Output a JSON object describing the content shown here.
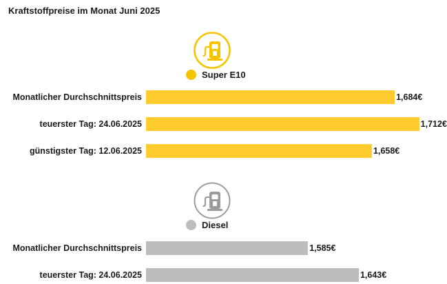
{
  "title": "Kraftstoffpreise im Monat Juni 2025",
  "colors": {
    "super_e10": "#FFCB2F",
    "super_e10_icon": "#F6C400",
    "diesel": "#BDBDBD",
    "diesel_icon": "#9B9B9B"
  },
  "icons": {
    "super_e10": "fuel-pump-icon",
    "diesel": "fuel-pump-icon"
  },
  "chart_data": {
    "type": "bar",
    "orientation": "horizontal",
    "xlim": [
      1.4,
      1.75
    ],
    "series": [
      {
        "name": "Super E10",
        "categories": [
          "Monatlicher Durchschnittspreis",
          "teuerster Tag: 24.06.2025",
          "günstigster Tag: 12.06.2025"
        ],
        "values": [
          1.684,
          1.712,
          1.658
        ],
        "value_labels": [
          "1,684€",
          "1,712€",
          "1,658€"
        ]
      },
      {
        "name": "Diesel",
        "categories": [
          "Monatlicher Durchschnittspreis",
          "teuerster Tag: 24.06.2025"
        ],
        "values": [
          1.585,
          1.643
        ],
        "value_labels": [
          "1,585€",
          "1,643€"
        ]
      }
    ]
  }
}
